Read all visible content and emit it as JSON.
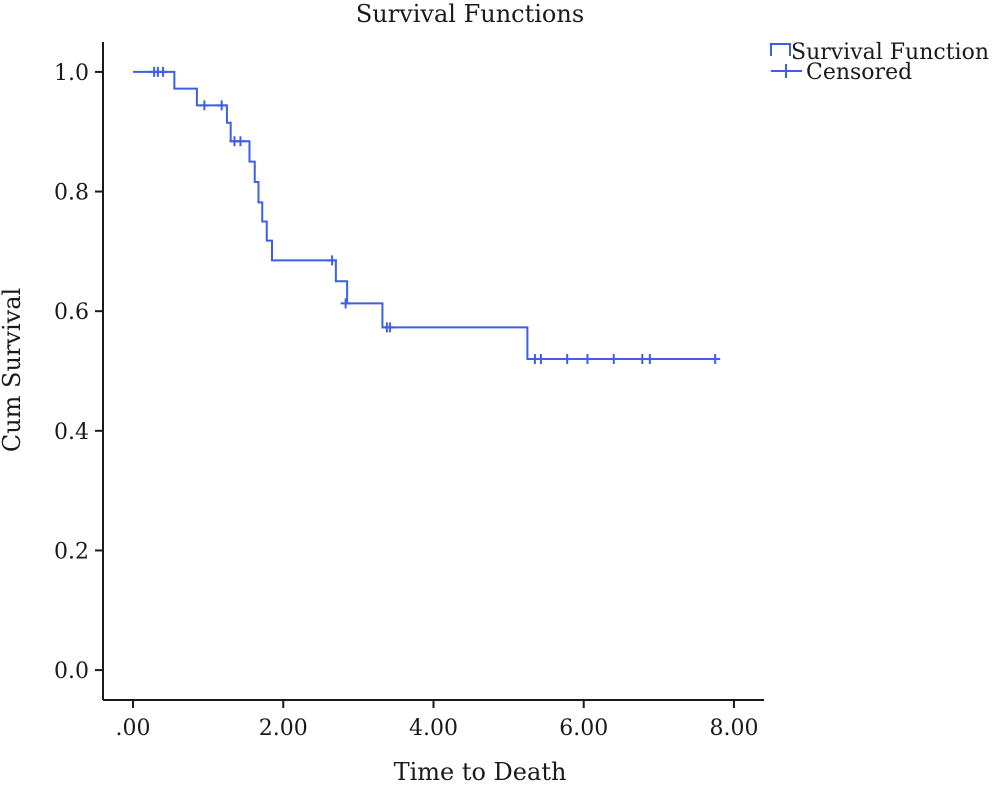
{
  "chart_data": {
    "type": "line",
    "title": "Survival Functions",
    "xlabel": "Time to Death",
    "ylabel": "Cum Survival",
    "xlim": [
      -0.4,
      8.4
    ],
    "ylim": [
      -0.05,
      1.05
    ],
    "x_ticks": [
      0,
      2,
      4,
      6,
      8
    ],
    "x_tick_labels": [
      ".00",
      "2.00",
      "4.00",
      "6.00",
      "8.00"
    ],
    "y_ticks": [
      0.0,
      0.2,
      0.4,
      0.6,
      0.8,
      1.0
    ],
    "y_tick_labels": [
      "0.0",
      "0.2",
      "0.4",
      "0.6",
      "0.8",
      "1.0"
    ],
    "grid": false,
    "legend_position": "top-right",
    "series": [
      {
        "name": "Survival Function",
        "color": "#3d5ee8",
        "step_points": [
          {
            "x": 0.0,
            "y": 1.0
          },
          {
            "x": 0.55,
            "y": 0.972
          },
          {
            "x": 0.85,
            "y": 0.944
          },
          {
            "x": 1.25,
            "y": 0.915
          },
          {
            "x": 1.3,
            "y": 0.884
          },
          {
            "x": 1.55,
            "y": 0.85
          },
          {
            "x": 1.62,
            "y": 0.816
          },
          {
            "x": 1.67,
            "y": 0.782
          },
          {
            "x": 1.72,
            "y": 0.75
          },
          {
            "x": 1.78,
            "y": 0.718
          },
          {
            "x": 1.85,
            "y": 0.685
          },
          {
            "x": 2.7,
            "y": 0.65
          },
          {
            "x": 2.85,
            "y": 0.613
          },
          {
            "x": 3.32,
            "y": 0.573
          },
          {
            "x": 5.25,
            "y": 0.52
          }
        ],
        "end_x": 7.75
      },
      {
        "name": "Censored",
        "color": "#3d5ee8",
        "marker": "plus",
        "points": [
          {
            "x": 0.28,
            "y": 1.0
          },
          {
            "x": 0.33,
            "y": 1.0
          },
          {
            "x": 0.4,
            "y": 1.0
          },
          {
            "x": 0.95,
            "y": 0.944
          },
          {
            "x": 1.18,
            "y": 0.944
          },
          {
            "x": 1.35,
            "y": 0.884
          },
          {
            "x": 1.43,
            "y": 0.884
          },
          {
            "x": 2.65,
            "y": 0.685
          },
          {
            "x": 2.83,
            "y": 0.613
          },
          {
            "x": 3.38,
            "y": 0.573
          },
          {
            "x": 3.42,
            "y": 0.573
          },
          {
            "x": 5.35,
            "y": 0.52
          },
          {
            "x": 5.43,
            "y": 0.52
          },
          {
            "x": 5.78,
            "y": 0.52
          },
          {
            "x": 6.05,
            "y": 0.52
          },
          {
            "x": 6.4,
            "y": 0.52
          },
          {
            "x": 6.78,
            "y": 0.52
          },
          {
            "x": 6.88,
            "y": 0.52
          },
          {
            "x": 7.75,
            "y": 0.52
          }
        ]
      }
    ]
  }
}
